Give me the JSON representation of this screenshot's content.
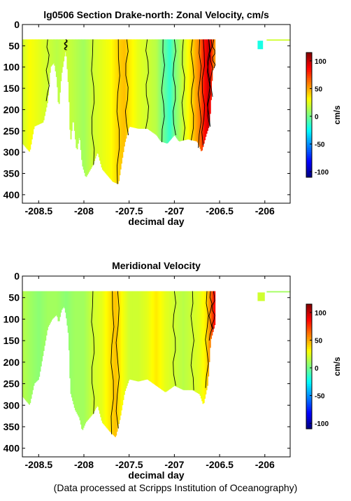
{
  "credit": "(Data processed at Scripps Institution of Oceanography)",
  "colors": {
    "cyan": "#20d8f0",
    "green": "#80ff90",
    "yellow": "#f4f040",
    "orange": "#ff9a1a",
    "red": "#e83010",
    "blue": "#1010e0"
  },
  "chart_data": [
    {
      "type": "heatmap",
      "title": "lg0506 Section Drake-north: Zonal Velocity, cm/s",
      "xlabel": "decimal day",
      "ylabel": "",
      "xlim": [
        -208.68,
        -205.72
      ],
      "ylim": [
        420,
        0
      ],
      "x_ticks": [
        -208.5,
        -208,
        -207.5,
        -207,
        -206.5,
        -206
      ],
      "x_tick_labels": [
        "-208.5",
        "-208",
        "-207.5",
        "-207",
        "-206.5",
        "-206"
      ],
      "y_ticks": [
        0,
        50,
        100,
        150,
        200,
        250,
        300,
        350,
        400
      ],
      "y_tick_labels": [
        "0",
        "50",
        "100",
        "150",
        "200",
        "250",
        "300",
        "350",
        "400"
      ],
      "colorbar": {
        "label": "cm/s",
        "range": [
          -110,
          115
        ],
        "ticks": [
          100,
          50,
          0,
          -50,
          -100
        ],
        "tick_labels": [
          "100",
          "50",
          "0",
          "-50",
          "-100"
        ]
      },
      "data_start_depth": 35,
      "data_end_day": -206.55,
      "bottom_depth": [
        [
          -208.68,
          280
        ],
        [
          -208.6,
          300
        ],
        [
          -208.55,
          240
        ],
        [
          -208.45,
          230
        ],
        [
          -208.4,
          180
        ],
        [
          -208.37,
          100
        ],
        [
          -208.33,
          90
        ],
        [
          -208.3,
          130
        ],
        [
          -208.28,
          200
        ],
        [
          -208.25,
          120
        ],
        [
          -208.22,
          80
        ],
        [
          -208.2,
          60
        ],
        [
          -208.17,
          150
        ],
        [
          -208.15,
          280
        ],
        [
          -208.12,
          220
        ],
        [
          -208.08,
          300
        ],
        [
          -208.05,
          260
        ],
        [
          -208.02,
          330
        ],
        [
          -207.98,
          360
        ],
        [
          -207.9,
          330
        ],
        [
          -207.85,
          300
        ],
        [
          -207.8,
          340
        ],
        [
          -207.72,
          360
        ],
        [
          -207.68,
          370
        ],
        [
          -207.62,
          375
        ],
        [
          -207.58,
          320
        ],
        [
          -207.55,
          280
        ],
        [
          -207.5,
          240
        ],
        [
          -207.4,
          245
        ],
        [
          -207.3,
          245
        ],
        [
          -207.2,
          260
        ],
        [
          -207.15,
          275
        ],
        [
          -207.08,
          280
        ],
        [
          -207.0,
          260
        ],
        [
          -206.95,
          275
        ],
        [
          -206.85,
          270
        ],
        [
          -206.75,
          275
        ],
        [
          -206.7,
          300
        ],
        [
          -206.65,
          260
        ],
        [
          -206.62,
          240
        ],
        [
          -206.6,
          200
        ],
        [
          -206.58,
          110
        ],
        [
          -206.55,
          95
        ]
      ],
      "value_bands": [
        [
          -208.68,
          20
        ],
        [
          -208.6,
          30
        ],
        [
          -208.5,
          25
        ],
        [
          -208.4,
          20
        ],
        [
          -208.3,
          15
        ],
        [
          -208.2,
          20
        ],
        [
          -208.1,
          15
        ],
        [
          -208.0,
          10
        ],
        [
          -207.9,
          20
        ],
        [
          -207.8,
          25
        ],
        [
          -207.7,
          30
        ],
        [
          -207.62,
          40
        ],
        [
          -207.55,
          45
        ],
        [
          -207.5,
          35
        ],
        [
          -207.4,
          25
        ],
        [
          -207.3,
          20
        ],
        [
          -207.2,
          15
        ],
        [
          -207.1,
          -5
        ],
        [
          -207.05,
          -15
        ],
        [
          -207.0,
          0
        ],
        [
          -206.95,
          10
        ],
        [
          -206.9,
          20
        ],
        [
          -206.8,
          40
        ],
        [
          -206.72,
          60
        ],
        [
          -206.68,
          80
        ],
        [
          -206.62,
          100
        ],
        [
          -206.58,
          70
        ],
        [
          -206.55,
          50
        ]
      ],
      "isolated_patches": [
        {
          "x": [
            -206.08,
            -206.02
          ],
          "depth": [
            38,
            58
          ],
          "value": -20
        },
        {
          "x": [
            -205.98,
            -205.72
          ],
          "depth": [
            35,
            38
          ],
          "value": 20
        }
      ]
    },
    {
      "type": "heatmap",
      "title": "Meridional Velocity",
      "xlabel": "decimal day",
      "ylabel": "",
      "xlim": [
        -208.68,
        -205.72
      ],
      "ylim": [
        420,
        0
      ],
      "x_ticks": [
        -208.5,
        -208,
        -207.5,
        -207,
        -206.5,
        -206
      ],
      "x_tick_labels": [
        "-208.5",
        "-208",
        "-207.5",
        "-207",
        "-206.5",
        "-206"
      ],
      "y_ticks": [
        0,
        50,
        100,
        150,
        200,
        250,
        300,
        350,
        400
      ],
      "y_tick_labels": [
        "0",
        "50",
        "100",
        "150",
        "200",
        "250",
        "300",
        "350",
        "400"
      ],
      "colorbar": {
        "label": "cm/s",
        "range": [
          -110,
          115
        ],
        "ticks": [
          100,
          50,
          0,
          -50,
          -100
        ],
        "tick_labels": [
          "100",
          "50",
          "0",
          "-50",
          "-100"
        ]
      },
      "data_start_depth": 35,
      "data_end_day": -206.55,
      "bottom_depth": [
        [
          -208.68,
          280
        ],
        [
          -208.6,
          300
        ],
        [
          -208.55,
          250
        ],
        [
          -208.5,
          240
        ],
        [
          -208.45,
          180
        ],
        [
          -208.4,
          120
        ],
        [
          -208.35,
          100
        ],
        [
          -208.3,
          90
        ],
        [
          -208.28,
          110
        ],
        [
          -208.25,
          80
        ],
        [
          -208.22,
          70
        ],
        [
          -208.2,
          90
        ],
        [
          -208.17,
          140
        ],
        [
          -208.15,
          270
        ],
        [
          -208.1,
          310
        ],
        [
          -208.05,
          330
        ],
        [
          -208.02,
          360
        ],
        [
          -207.98,
          340
        ],
        [
          -207.9,
          320
        ],
        [
          -207.85,
          300
        ],
        [
          -207.8,
          340
        ],
        [
          -207.72,
          360
        ],
        [
          -207.65,
          375
        ],
        [
          -207.6,
          330
        ],
        [
          -207.55,
          270
        ],
        [
          -207.5,
          240
        ],
        [
          -207.4,
          245
        ],
        [
          -207.3,
          240
        ],
        [
          -207.2,
          255
        ],
        [
          -207.1,
          270
        ],
        [
          -207.0,
          255
        ],
        [
          -206.9,
          265
        ],
        [
          -206.8,
          265
        ],
        [
          -206.72,
          275
        ],
        [
          -206.68,
          300
        ],
        [
          -206.63,
          250
        ],
        [
          -206.6,
          150
        ],
        [
          -206.55,
          110
        ]
      ],
      "value_bands": [
        [
          -208.68,
          15
        ],
        [
          -208.6,
          10
        ],
        [
          -208.5,
          5
        ],
        [
          -208.4,
          10
        ],
        [
          -208.3,
          10
        ],
        [
          -208.2,
          5
        ],
        [
          -208.1,
          10
        ],
        [
          -208.0,
          10
        ],
        [
          -207.9,
          20
        ],
        [
          -207.8,
          25
        ],
        [
          -207.72,
          35
        ],
        [
          -207.65,
          45
        ],
        [
          -207.58,
          30
        ],
        [
          -207.5,
          20
        ],
        [
          -207.4,
          20
        ],
        [
          -207.3,
          25
        ],
        [
          -207.2,
          35
        ],
        [
          -207.1,
          25
        ],
        [
          -207.0,
          20
        ],
        [
          -206.9,
          15
        ],
        [
          -206.8,
          20
        ],
        [
          -206.72,
          25
        ],
        [
          -206.65,
          35
        ],
        [
          -206.6,
          60
        ],
        [
          -206.56,
          85
        ]
      ],
      "isolated_patches": [
        {
          "x": [
            -206.08,
            -206.0
          ],
          "depth": [
            38,
            58
          ],
          "value": 20
        },
        {
          "x": [
            -205.98,
            -205.72
          ],
          "depth": [
            35,
            38
          ],
          "value": 10
        }
      ]
    }
  ]
}
